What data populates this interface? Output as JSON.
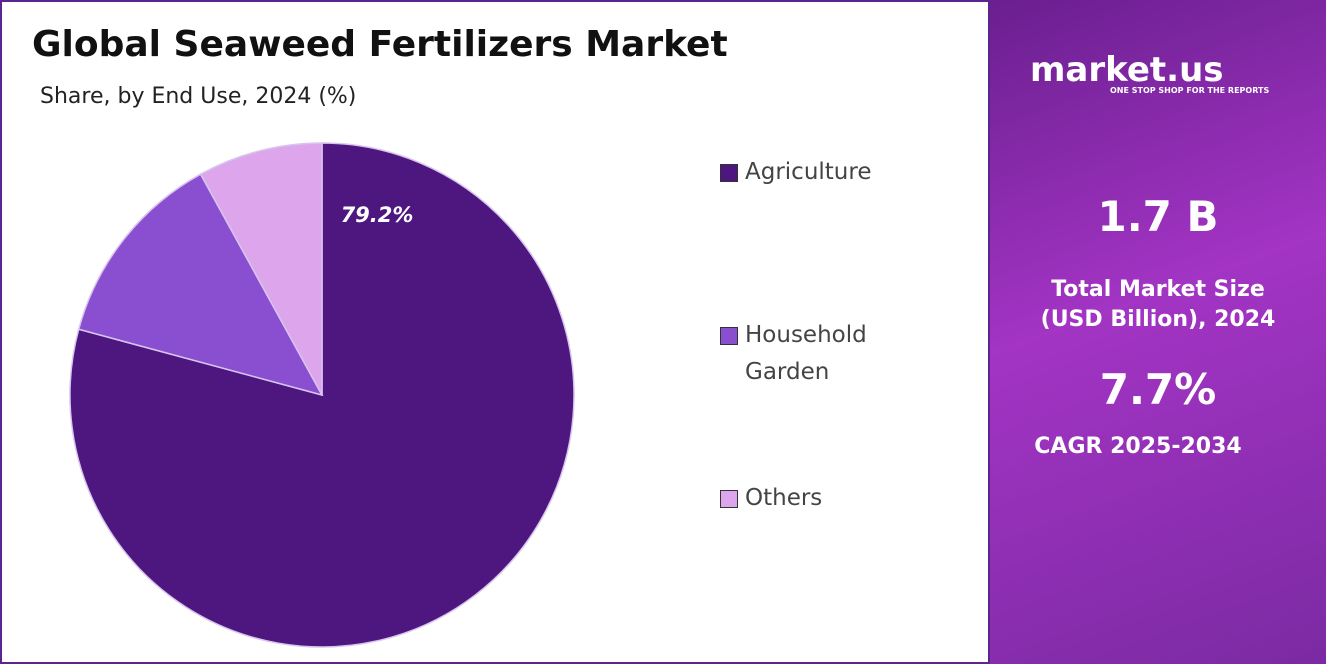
{
  "chart_data": {
    "type": "pie",
    "title": "Global Seaweed Fertilizers Market",
    "subtitle": "Share, by End Use, 2024 (%)",
    "categories": [
      "Agriculture",
      "Household Garden",
      "Others"
    ],
    "values": [
      79.2,
      12.8,
      8
    ],
    "value_labels": [
      "79.2%",
      null,
      null
    ],
    "colors": [
      "#4e1780",
      "#8a4fd0",
      "#dda6ec"
    ]
  },
  "side_panel": {
    "logo": "market.us",
    "tagline": "ONE STOP SHOP FOR THE REPORTS",
    "market_size": "1.7 B",
    "market_size_label": "Total Market Size (USD Billion), 2024",
    "cagr": "7.7%",
    "cagr_label": "CAGR 2025-2034"
  }
}
